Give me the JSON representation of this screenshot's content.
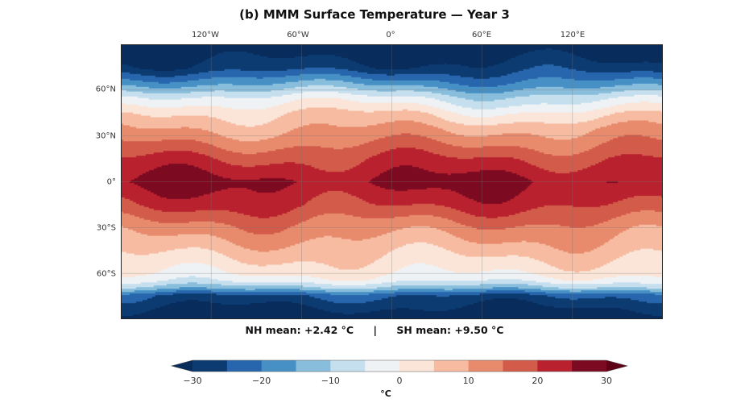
{
  "title": "(b) MMM Surface Temperature — Year 3",
  "lon_ticks": [
    "120°W",
    "60°W",
    "0°",
    "60°E",
    "120°E"
  ],
  "lat_ticks": [
    "60°N",
    "30°N",
    "0°",
    "30°S",
    "60°S"
  ],
  "stats": {
    "nh": "NH mean: +2.42 °C",
    "separator": "|",
    "sh": "SH mean: +9.50 °C"
  },
  "colorbar": {
    "ticks": [
      "−30",
      "−20",
      "−10",
      "0",
      "10",
      "20",
      "30"
    ],
    "unit": "°C",
    "levels": [
      -30,
      -25,
      -20,
      -15,
      -10,
      -5,
      0,
      5,
      10,
      15,
      20,
      25,
      30
    ],
    "colors": [
      "#0c3b72",
      "#2766ad",
      "#4790c5",
      "#88bddb",
      "#c5dfee",
      "#eef2f5",
      "#fbe5d8",
      "#f6bba0",
      "#e88a6c",
      "#d35b4a",
      "#b9212f",
      "#7c0a20"
    ],
    "under_color": "#082c5c",
    "over_color": "#5e0016",
    "extend": "both"
  },
  "chart_data": {
    "type": "heatmap",
    "title": "(b) MMM Surface Temperature — Year 3",
    "projection": "equirectangular",
    "xlim": [
      -180,
      180
    ],
    "ylim": [
      -90,
      90
    ],
    "x_ticks": [
      -120,
      -60,
      0,
      60,
      120
    ],
    "y_ticks": [
      60,
      30,
      0,
      -30,
      -60
    ],
    "zonal_profile": {
      "lat": [
        90,
        75,
        65,
        55,
        45,
        30,
        15,
        0,
        -15,
        -30,
        -45,
        -60,
        -65,
        -70,
        -75,
        -90
      ],
      "temperature": [
        -35,
        -28,
        -16,
        -3,
        5,
        12,
        20,
        26,
        21,
        13,
        7,
        1,
        -3,
        -12,
        -25,
        -35
      ]
    },
    "nh_mean": 2.42,
    "sh_mean": 9.5,
    "colorbar_range": [
      -30,
      30
    ],
    "grid": true
  }
}
